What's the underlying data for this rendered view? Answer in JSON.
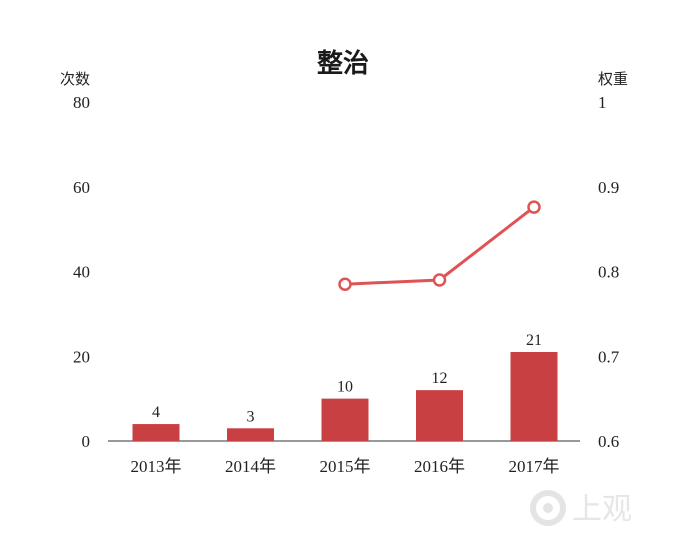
{
  "chart_data": {
    "type": "bar+line",
    "title": "整治",
    "categories": [
      "2013年",
      "2014年",
      "2015年",
      "2016年",
      "2017年"
    ],
    "series": [
      {
        "name": "次数",
        "type": "bar",
        "axis": "left",
        "values": [
          4,
          3,
          10,
          12,
          21
        ],
        "color": "#c94043"
      },
      {
        "name": "权重",
        "type": "line",
        "axis": "right",
        "values": [
          null,
          null,
          0.785,
          0.79,
          0.876
        ],
        "color": "#e05354"
      }
    ],
    "y_left": {
      "label": "次数",
      "ylim": [
        0,
        80
      ],
      "ticks": [
        0,
        20,
        40,
        60,
        80
      ]
    },
    "y_right": {
      "label": "权重",
      "ylim": [
        0.6,
        1
      ],
      "ticks": [
        "0.6",
        "0.7",
        "0.8",
        "0.9",
        "1"
      ]
    },
    "grid": false
  },
  "watermark": {
    "text": "上观"
  }
}
